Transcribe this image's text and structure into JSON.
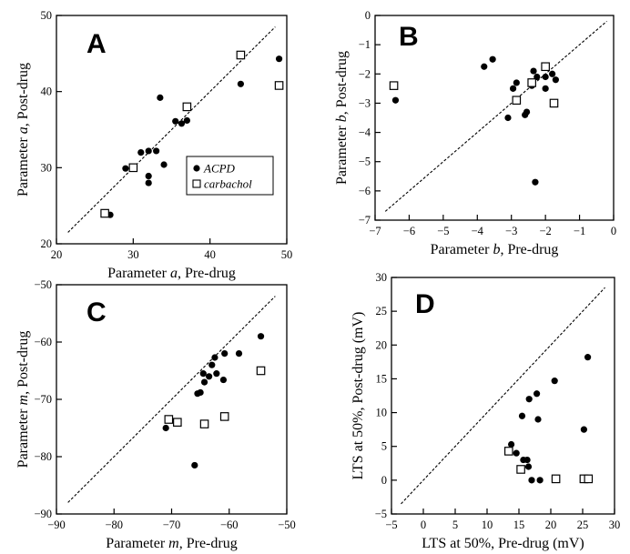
{
  "chart_data": [
    {
      "panel": "A",
      "type": "scatter",
      "xlabel": [
        "Parameter ",
        "a",
        ", Pre-drug"
      ],
      "ylabel": [
        "Parameter ",
        "a",
        ", Post-drug"
      ],
      "xlim": [
        20,
        50
      ],
      "ylim": [
        20,
        50
      ],
      "xticks": [
        20,
        30,
        40,
        50
      ],
      "yticks": [
        20,
        30,
        40,
        50
      ],
      "identity_line": [
        [
          21.5,
          21.5
        ],
        [
          48.5,
          48.5
        ]
      ],
      "legend": {
        "position": "inside-lower-right",
        "entries": [
          "ACPD",
          "carbachol"
        ]
      },
      "series": [
        {
          "name": "ACPD",
          "marker": "filled-circle",
          "points": [
            [
              27,
              23.8
            ],
            [
              29,
              29.9
            ],
            [
              31,
              32
            ],
            [
              32,
              32.2
            ],
            [
              32,
              28.9
            ],
            [
              32,
              28
            ],
            [
              33,
              32.2
            ],
            [
              33.5,
              39.2
            ],
            [
              34,
              30.4
            ],
            [
              35.5,
              36.1
            ],
            [
              36.3,
              35.8
            ],
            [
              37,
              36.2
            ],
            [
              44,
              41
            ],
            [
              49,
              44.3
            ]
          ]
        },
        {
          "name": "carbachol",
          "marker": "open-square",
          "points": [
            [
              26.3,
              24
            ],
            [
              30,
              30
            ],
            [
              37,
              38
            ],
            [
              44,
              44.8
            ],
            [
              49,
              40.8
            ]
          ]
        }
      ]
    },
    {
      "panel": "B",
      "type": "scatter",
      "xlabel": [
        "Parameter ",
        "b",
        ", Pre-drug"
      ],
      "ylabel": [
        "Parameter ",
        "b",
        ", Post-drug"
      ],
      "xlim": [
        -7,
        0
      ],
      "ylim": [
        -7,
        0
      ],
      "xticks": [
        -7,
        -6,
        -5,
        -4,
        -3,
        -2,
        -1,
        0
      ],
      "yticks": [
        -7,
        -6,
        -5,
        -4,
        -3,
        -2,
        -1,
        0
      ],
      "identity_line": [
        [
          -6.7,
          -6.7
        ],
        [
          -0.2,
          -0.2
        ]
      ],
      "series": [
        {
          "name": "ACPD",
          "marker": "filled-circle",
          "points": [
            [
              -6.4,
              -2.9
            ],
            [
              -3.8,
              -1.75
            ],
            [
              -3.55,
              -1.5
            ],
            [
              -3.1,
              -3.5
            ],
            [
              -2.95,
              -2.5
            ],
            [
              -2.85,
              -2.3
            ],
            [
              -2.6,
              -3.4
            ],
            [
              -2.55,
              -3.3
            ],
            [
              -2.4,
              -2.4
            ],
            [
              -2.35,
              -1.9
            ],
            [
              -2.3,
              -5.7
            ],
            [
              -2.25,
              -2.1
            ],
            [
              -2.0,
              -2.5
            ],
            [
              -2.0,
              -2.1
            ],
            [
              -1.8,
              -2.0
            ],
            [
              -1.7,
              -2.2
            ]
          ]
        },
        {
          "name": "carbachol",
          "marker": "open-square",
          "points": [
            [
              -6.45,
              -2.4
            ],
            [
              -2.85,
              -2.9
            ],
            [
              -2.4,
              -2.3
            ],
            [
              -2.0,
              -1.75
            ],
            [
              -1.75,
              -3.0
            ]
          ]
        }
      ]
    },
    {
      "panel": "C",
      "type": "scatter",
      "xlabel": [
        "Parameter ",
        "m",
        ", Pre-drug"
      ],
      "ylabel": [
        "Parameter ",
        "m",
        ", Post-drug"
      ],
      "xlim": [
        -90,
        -50
      ],
      "ylim": [
        -90,
        -50
      ],
      "xticks": [
        -90,
        -80,
        -70,
        -60,
        -50
      ],
      "yticks": [
        -90,
        -80,
        -70,
        -60,
        -50
      ],
      "identity_line": [
        [
          -88,
          -88
        ],
        [
          -52,
          -52
        ]
      ],
      "series": [
        {
          "name": "ACPD",
          "marker": "filled-circle",
          "points": [
            [
              -71,
              -75
            ],
            [
              -66,
              -81.5
            ],
            [
              -65.5,
              -69
            ],
            [
              -65,
              -68.8
            ],
            [
              -64.5,
              -65.5
            ],
            [
              -64.3,
              -67
            ],
            [
              -63.5,
              -66
            ],
            [
              -63,
              -64
            ],
            [
              -62.5,
              -62.7
            ],
            [
              -62.2,
              -65.5
            ],
            [
              -61,
              -66.6
            ],
            [
              -60.8,
              -62
            ],
            [
              -58.3,
              -62
            ],
            [
              -54.5,
              -59
            ]
          ]
        },
        {
          "name": "carbachol",
          "marker": "open-square",
          "points": [
            [
              -70.5,
              -73.5
            ],
            [
              -69,
              -74
            ],
            [
              -64.3,
              -74.3
            ],
            [
              -60.8,
              -73
            ],
            [
              -54.5,
              -65
            ]
          ]
        }
      ]
    },
    {
      "panel": "D",
      "type": "scatter",
      "xlabel": [
        "LTS at 50%, Pre-drug (mV)"
      ],
      "ylabel": [
        "LTS at 50%, Post-drug (mV)"
      ],
      "xlim": [
        -5,
        30
      ],
      "ylim": [
        -5,
        30
      ],
      "xticks": [
        -5,
        0,
        5,
        10,
        15,
        20,
        25,
        30
      ],
      "yticks": [
        -5,
        0,
        5,
        10,
        15,
        20,
        25,
        30
      ],
      "identity_line": [
        [
          -3.5,
          -3.5
        ],
        [
          28.5,
          28.5
        ]
      ],
      "series": [
        {
          "name": "ACPD",
          "marker": "filled-circle",
          "points": [
            [
              13.8,
              5.3
            ],
            [
              14.6,
              4
            ],
            [
              15.5,
              9.5
            ],
            [
              15.7,
              3
            ],
            [
              16.3,
              3
            ],
            [
              16.5,
              2
            ],
            [
              16.6,
              12
            ],
            [
              17,
              0
            ],
            [
              17.8,
              12.8
            ],
            [
              18,
              9
            ],
            [
              18.3,
              0
            ],
            [
              20.6,
              14.7
            ],
            [
              25.2,
              7.5
            ],
            [
              25.8,
              18.2
            ]
          ]
        },
        {
          "name": "carbachol",
          "marker": "open-square",
          "points": [
            [
              13.4,
              4.3
            ],
            [
              15.3,
              1.6
            ],
            [
              20.8,
              0.2
            ],
            [
              25.2,
              0.2
            ],
            [
              25.9,
              0.2
            ]
          ]
        }
      ]
    }
  ]
}
